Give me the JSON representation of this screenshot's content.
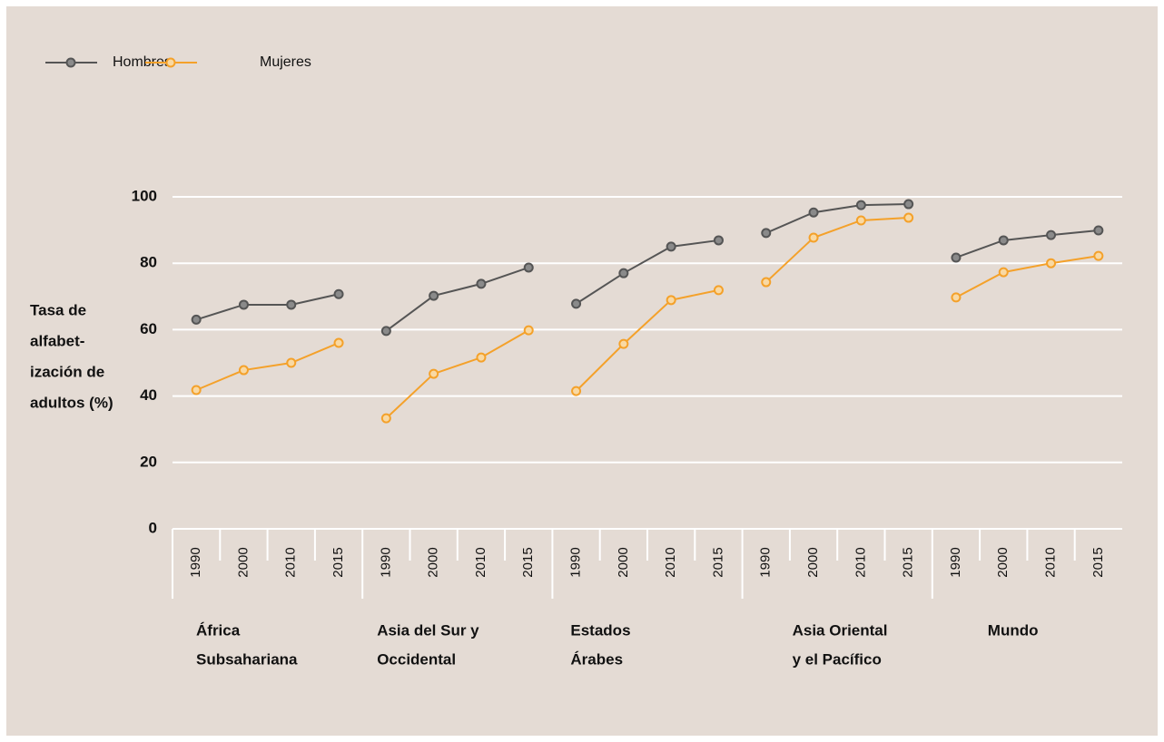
{
  "chart_data": {
    "type": "line",
    "y_label_lines": [
      "Tasa de",
      "alfabet-",
      "ización de",
      "adultos  (%)"
    ],
    "groups": [
      {
        "label_lines": [
          "África",
          "Subsahariana"
        ],
        "categories": [
          "1990",
          "2000",
          "2010",
          "2015"
        ]
      },
      {
        "label_lines": [
          "Asia del Sur y",
          "Occidental"
        ],
        "categories": [
          "1990",
          "2000",
          "2010",
          "2015"
        ]
      },
      {
        "label_lines": [
          "Estados",
          "Árabes"
        ],
        "categories": [
          "1990",
          "2000",
          "2010",
          "2015"
        ]
      },
      {
        "label_lines": [
          "Asia Oriental",
          "y el Pacífico"
        ],
        "categories": [
          "1990",
          "2000",
          "2010",
          "2015"
        ]
      },
      {
        "label_lines": [
          "Mundo"
        ],
        "categories": [
          "1990",
          "2000",
          "2010",
          "2015"
        ]
      }
    ],
    "series": [
      {
        "name": "Hombres",
        "color": "#555555",
        "marker_fill": "#8a8a8a",
        "values": [
          [
            63,
            67.5,
            67.5,
            70.7
          ],
          [
            59.6,
            70.2,
            73.8,
            78.7
          ],
          [
            67.8,
            77,
            85,
            86.9
          ],
          [
            89.1,
            95.3,
            97.5,
            97.8
          ],
          [
            81.7,
            86.9,
            88.5,
            89.9
          ]
        ]
      },
      {
        "name": "Mujeres",
        "color": "#f4a12a",
        "marker_fill": "#f9d9a3",
        "values": [
          [
            41.8,
            47.8,
            50,
            56
          ],
          [
            33.3,
            46.7,
            51.6,
            59.8
          ],
          [
            41.5,
            55.7,
            68.9,
            71.9
          ],
          [
            74.3,
            87.7,
            92.9,
            93.7
          ],
          [
            69.7,
            77.3,
            80,
            82.2
          ]
        ]
      }
    ],
    "ylim": [
      0,
      100
    ],
    "yticks": [
      0,
      20,
      40,
      60,
      80,
      100
    ],
    "grid": true,
    "legend": "top-left"
  }
}
